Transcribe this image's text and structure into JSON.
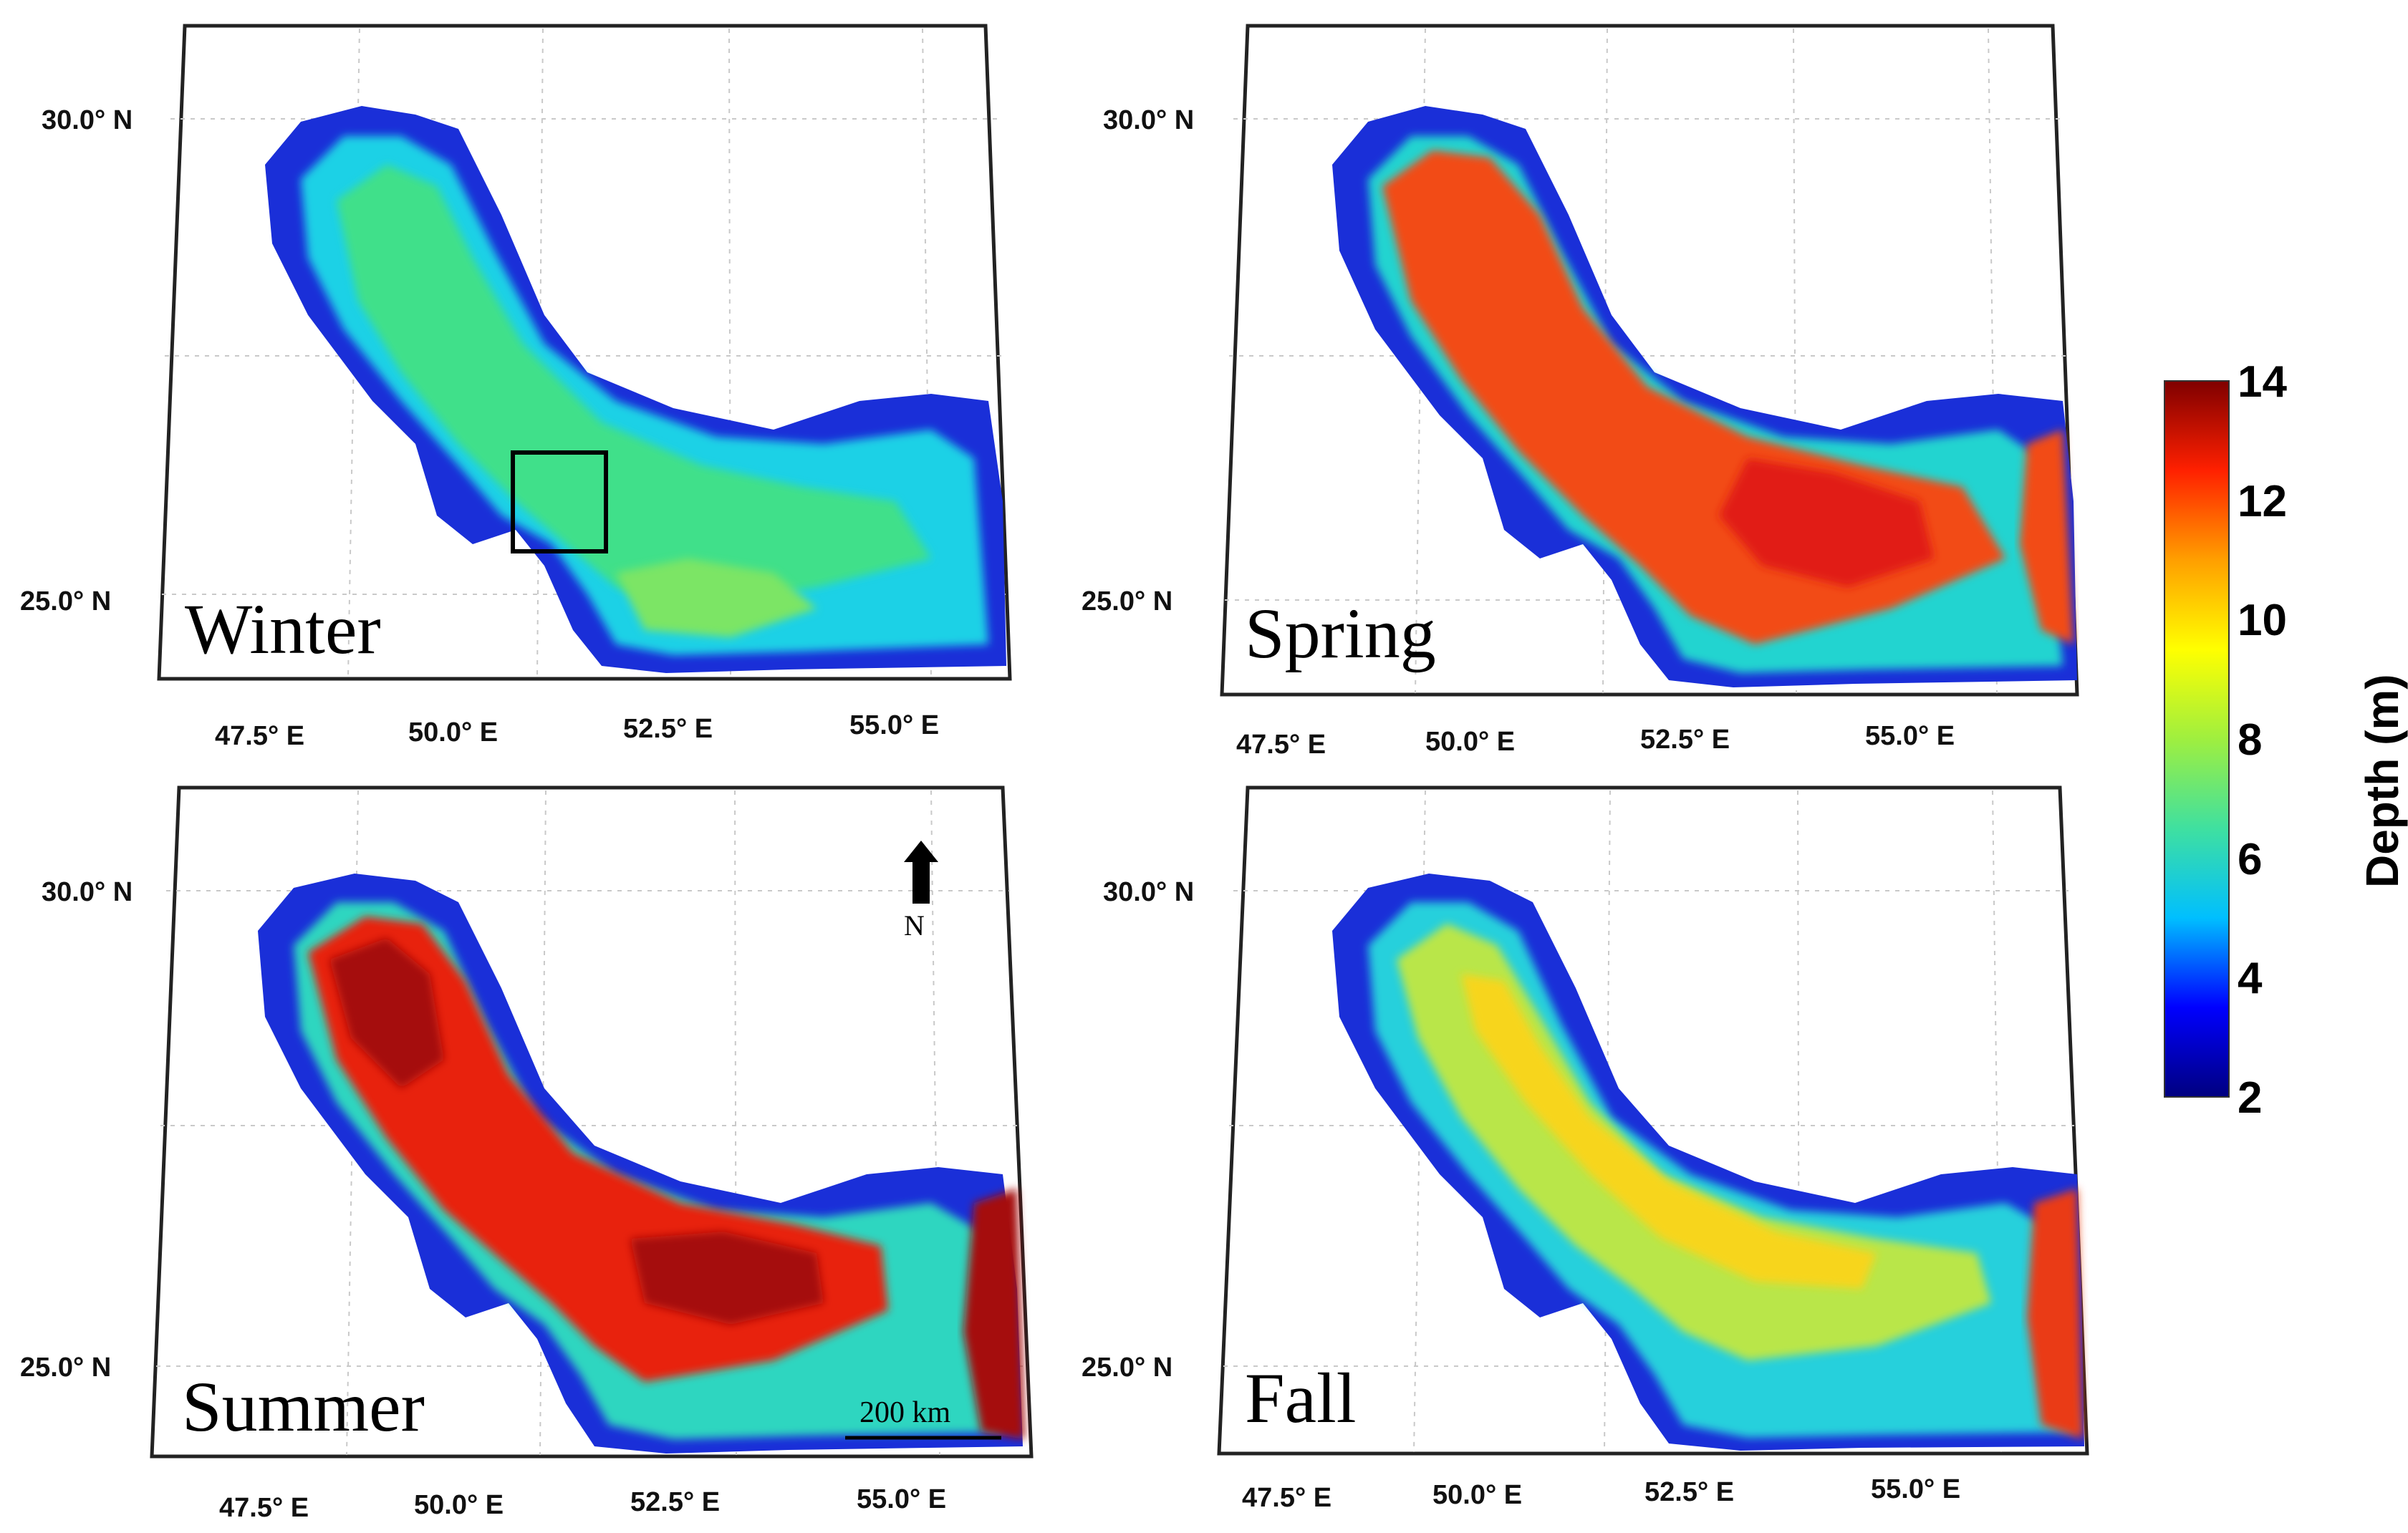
{
  "panels": [
    {
      "season": "Winter",
      "lat_labels": [
        "30.0° N",
        "25.0° N"
      ],
      "lon_labels": [
        "47.5° E",
        "50.0° E",
        "52.5° E",
        "55.0° E"
      ],
      "palette": {
        "edge": "#1a2fd8",
        "mid": "#1fd1e6",
        "core": "#41e08a",
        "center": "#7be565"
      },
      "has_box": true
    },
    {
      "season": "Spring",
      "lat_labels": [
        "30.0° N",
        "25.0° N"
      ],
      "lon_labels": [
        "47.5° E",
        "50.0° E",
        "52.5° E",
        "55.0° E"
      ],
      "palette": {
        "edge": "#1a2fd8",
        "mid": "#22d4d0",
        "core": "#f24b16",
        "center": "#e11b12"
      },
      "has_box": false
    },
    {
      "season": "Summer",
      "lat_labels": [
        "30.0° N",
        "25.0° N"
      ],
      "lon_labels": [
        "47.5° E",
        "50.0° E",
        "52.5° E",
        "55.0° E"
      ],
      "palette": {
        "edge": "#1a2fd8",
        "mid": "#2fd6c0",
        "core": "#e8200f",
        "center": "#a50b0b"
      },
      "has_box": false,
      "north_arrow": "N",
      "scale_bar": "200 km"
    },
    {
      "season": "Fall",
      "lat_labels": [
        "30.0° N",
        "25.0° N"
      ],
      "lon_labels": [
        "47.5° E",
        "50.0° E",
        "52.5° E",
        "55.0° E"
      ],
      "palette": {
        "edge": "#1a2fd8",
        "mid": "#27d0dc",
        "core": "#b9e64a",
        "center": "#f7d51f"
      },
      "has_box": false
    }
  ],
  "colorbar": {
    "label": "Depth (m)",
    "ticks": [
      "14",
      "12",
      "10",
      "8",
      "6",
      "4",
      "2"
    ],
    "range": [
      2,
      14
    ],
    "colors": [
      "#00007f",
      "#0000ff",
      "#00bfff",
      "#3fe0a0",
      "#9fef3f",
      "#ffff00",
      "#ff9f00",
      "#ff2000",
      "#7f0000"
    ]
  }
}
